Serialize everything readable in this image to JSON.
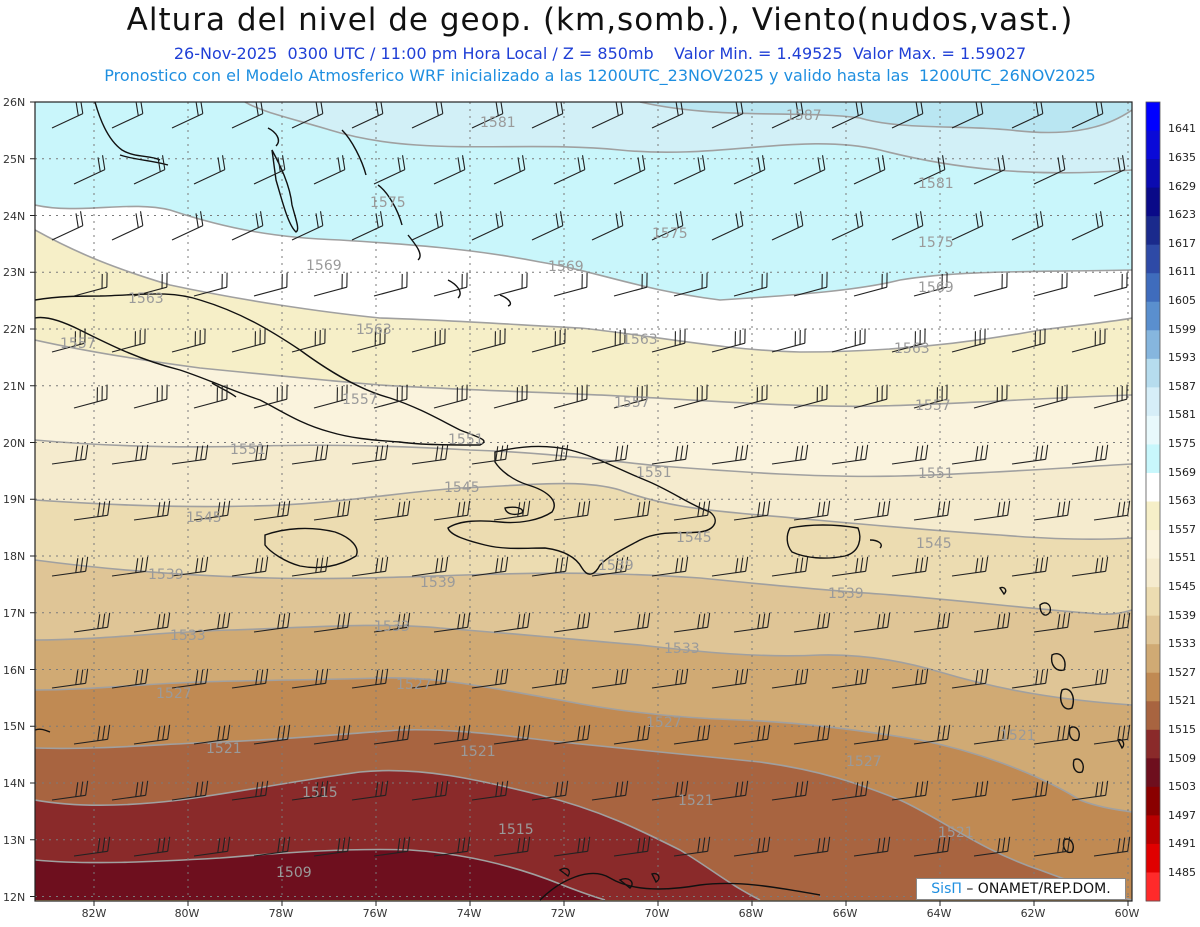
{
  "header": {
    "title": "Altura del nivel de geop. (km,somb.), Viento(nudos,vast.)",
    "subtitle_line1": "26-Nov-2025  0300 UTC / 11:00 pm Hora Local / Z = 850mb    Valor Min. = 1.49525  Valor Max. = 1.59027",
    "subtitle_line2": "Pronostico con el Modelo Atmosferico WRF inicializado a las 1200UTC_23NOV2025 y valido hasta las  1200UTC_26NOV2025"
  },
  "map": {
    "lat_labels": [
      "26N",
      "25N",
      "24N",
      "23N",
      "22N",
      "21N",
      "20N",
      "19N",
      "18N",
      "17N",
      "16N",
      "15N",
      "14N",
      "13N",
      "12N"
    ],
    "lon_labels": [
      "82W",
      "80W",
      "78W",
      "76W",
      "74W",
      "72W",
      "70W",
      "68W",
      "66W",
      "64W",
      "62W",
      "60W"
    ],
    "bands_north_to_south": [
      {
        "level": "1587",
        "color": "#b9e6f2"
      },
      {
        "level": "1581",
        "color": "#d2f0f7"
      },
      {
        "level": "1575",
        "color": "#c9f6fb"
      },
      {
        "level": "1569",
        "color": "#ffffff"
      },
      {
        "level": "1563",
        "color": "#f6efc8"
      },
      {
        "level": "1557",
        "color": "#faf3dd"
      },
      {
        "level": "1551",
        "color": "#f5ebce"
      },
      {
        "level": "1545",
        "color": "#ecdcb1"
      },
      {
        "level": "1539",
        "color": "#dfc596"
      },
      {
        "level": "1533",
        "color": "#d0aa74"
      },
      {
        "level": "1527",
        "color": "#c08a53"
      },
      {
        "level": "1521",
        "color": "#a86440"
      },
      {
        "level": "1515",
        "color": "#8a2a2a"
      },
      {
        "level": "1509",
        "color": "#6e0f1e"
      }
    ],
    "contour_labels": [
      "1587",
      "1581",
      "1581",
      "1575",
      "1575",
      "1575",
      "1569",
      "1569",
      "1569",
      "1563",
      "1563",
      "1563",
      "1563",
      "1557",
      "1557",
      "1557",
      "1557",
      "1551",
      "1551",
      "1551",
      "1551",
      "1545",
      "1545",
      "1545",
      "1545",
      "1539",
      "1539",
      "1539",
      "1539",
      "1533",
      "1533",
      "1533",
      "1527",
      "1527",
      "1527",
      "1527",
      "1521",
      "1521",
      "1521",
      "1521",
      "1521",
      "1515",
      "1515",
      "1509"
    ],
    "credit_brand": "SisΠ",
    "credit_text": "– ONAMET/REP.DOM."
  },
  "colorbar": {
    "labels": [
      "1641",
      "1635",
      "1629",
      "1623",
      "1617",
      "1611",
      "1605",
      "1599",
      "1593",
      "1587",
      "1581",
      "1575",
      "1569",
      "1563",
      "1557",
      "1551",
      "1545",
      "1539",
      "1533",
      "1527",
      "1521",
      "1515",
      "1509",
      "1503",
      "1497",
      "1491",
      "1485"
    ],
    "colors": [
      "#0000ff",
      "#0a0ad8",
      "#0b0bb0",
      "#0a0a88",
      "#1a2a8c",
      "#2e4aa6",
      "#3f6cbc",
      "#5a8fce",
      "#86b6de",
      "#b6dcee",
      "#d6eef8",
      "#e8f9fc",
      "#c8f7fc",
      "#ffffff",
      "#f6efc8",
      "#faf3dd",
      "#f5ebce",
      "#ecdcb1",
      "#dfc596",
      "#d0aa74",
      "#c08a53",
      "#a86440",
      "#8a2a2a",
      "#6e0f1e",
      "#8a0000",
      "#b80000",
      "#e00000",
      "#ff2a2a"
    ]
  }
}
